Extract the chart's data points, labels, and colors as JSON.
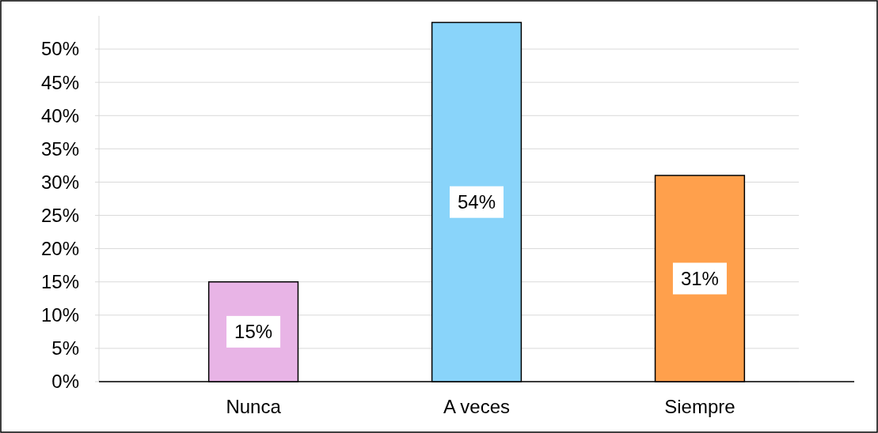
{
  "chart_data": {
    "type": "bar",
    "categories": [
      "Nunca",
      "A veces",
      "Siempre"
    ],
    "values": [
      15,
      54,
      31
    ],
    "colors": [
      "#e8b4e6",
      "#89d4fa",
      "#ffa04c"
    ],
    "value_labels": [
      "15%",
      "54%",
      "31%"
    ],
    "ylim": [
      0,
      55
    ],
    "yticks": [
      {
        "value": 0,
        "label": "0%"
      },
      {
        "value": 5,
        "label": "5%"
      },
      {
        "value": 10,
        "label": "10%"
      },
      {
        "value": 15,
        "label": "15%"
      },
      {
        "value": 20,
        "label": "20%"
      },
      {
        "value": 25,
        "label": "25%"
      },
      {
        "value": 30,
        "label": "30%"
      },
      {
        "value": 35,
        "label": "35%"
      },
      {
        "value": 40,
        "label": "40%"
      },
      {
        "value": 45,
        "label": "45%"
      },
      {
        "value": 50,
        "label": "50%"
      }
    ],
    "grid": "y"
  }
}
